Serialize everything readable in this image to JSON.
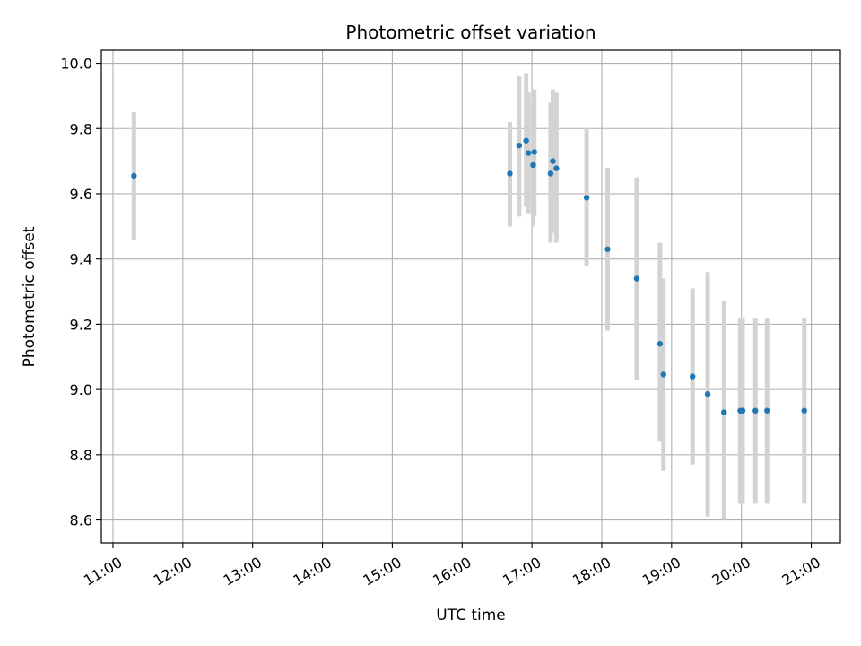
{
  "chart_data": {
    "type": "scatter",
    "title": "Photometric offset variation",
    "xlabel": "UTC time",
    "ylabel": "Photometric offset",
    "x_ticks": [
      "11:00",
      "12:00",
      "13:00",
      "14:00",
      "15:00",
      "16:00",
      "17:00",
      "18:00",
      "19:00",
      "20:00",
      "21:00"
    ],
    "y_ticks": [
      "8.6",
      "8.8",
      "9.0",
      "9.2",
      "9.4",
      "9.6",
      "9.8",
      "10.0"
    ],
    "xlim": [
      "10:50",
      "21:25"
    ],
    "ylim": [
      8.53,
      10.04
    ],
    "grid": true,
    "colors": {
      "points": "#1f77b4",
      "error_bars": "#d3d3d3",
      "grid": "#b0b0b0"
    },
    "series": [
      {
        "points": [
          {
            "x": "11:18",
            "y": 9.655,
            "ylow": 9.46,
            "yhigh": 9.85
          },
          {
            "x": "16:41",
            "y": 9.662,
            "ylow": 9.5,
            "yhigh": 9.82
          },
          {
            "x": "16:49",
            "y": 9.748,
            "ylow": 9.53,
            "yhigh": 9.96
          },
          {
            "x": "16:55",
            "y": 9.763,
            "ylow": 9.56,
            "yhigh": 9.97
          },
          {
            "x": "16:57",
            "y": 9.725,
            "ylow": 9.54,
            "yhigh": 9.91
          },
          {
            "x": "17:01",
            "y": 9.688,
            "ylow": 9.5,
            "yhigh": 9.88
          },
          {
            "x": "17:02",
            "y": 9.728,
            "ylow": 9.53,
            "yhigh": 9.92
          },
          {
            "x": "17:16",
            "y": 9.662,
            "ylow": 9.45,
            "yhigh": 9.88
          },
          {
            "x": "17:18",
            "y": 9.7,
            "ylow": 9.48,
            "yhigh": 9.92
          },
          {
            "x": "17:21",
            "y": 9.678,
            "ylow": 9.45,
            "yhigh": 9.91
          },
          {
            "x": "17:47",
            "y": 9.588,
            "ylow": 9.38,
            "yhigh": 9.8
          },
          {
            "x": "18:05",
            "y": 9.43,
            "ylow": 9.18,
            "yhigh": 9.68
          },
          {
            "x": "18:30",
            "y": 9.34,
            "ylow": 9.03,
            "yhigh": 9.65
          },
          {
            "x": "18:50",
            "y": 9.14,
            "ylow": 8.84,
            "yhigh": 9.45
          },
          {
            "x": "18:53",
            "y": 9.046,
            "ylow": 8.75,
            "yhigh": 9.34
          },
          {
            "x": "19:18",
            "y": 9.04,
            "ylow": 8.77,
            "yhigh": 9.31
          },
          {
            "x": "19:31",
            "y": 8.986,
            "ylow": 8.61,
            "yhigh": 9.36
          },
          {
            "x": "19:45",
            "y": 8.93,
            "ylow": 8.6,
            "yhigh": 9.27
          },
          {
            "x": "19:59",
            "y": 8.935,
            "ylow": 8.65,
            "yhigh": 9.22
          },
          {
            "x": "20:01",
            "y": 8.935,
            "ylow": 8.65,
            "yhigh": 9.22
          },
          {
            "x": "20:12",
            "y": 8.935,
            "ylow": 8.65,
            "yhigh": 9.22
          },
          {
            "x": "20:22",
            "y": 8.935,
            "ylow": 8.65,
            "yhigh": 9.22
          },
          {
            "x": "20:54",
            "y": 8.935,
            "ylow": 8.65,
            "yhigh": 9.22
          }
        ]
      }
    ]
  }
}
